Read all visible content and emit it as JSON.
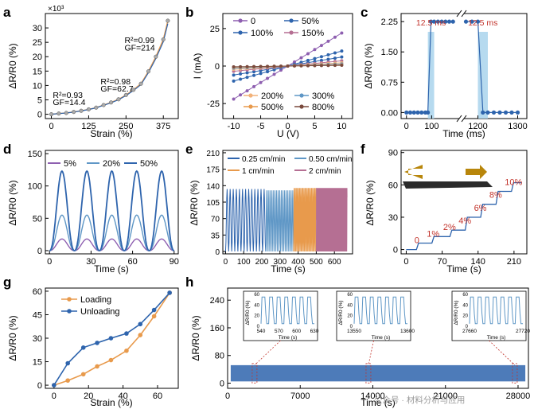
{
  "colors": {
    "blue": "#2e64ad",
    "orange": "#e89a4c",
    "purple": "#8e5fb0",
    "lightblue": "#5f97c6",
    "mauve": "#b56f93",
    "band": "#a9d3ec",
    "red": "#c2332b",
    "darkbrown": "#7a4a3d",
    "peach": "#f2b27a"
  },
  "chart_data": [
    {
      "panel": "a",
      "type": "line",
      "xlabel": "Strain (%)",
      "ylabel": "ΔR/R0 (%)",
      "exponent": "×10³",
      "xticks": [
        0,
        125,
        250,
        375
      ],
      "yticks": [
        0,
        5,
        10,
        15,
        20,
        25,
        30
      ],
      "xlim": [
        -20,
        425
      ],
      "ylim": [
        -1.5,
        35
      ],
      "series": [
        {
          "name": "data",
          "x": [
            0,
            25,
            50,
            75,
            100,
            125,
            150,
            175,
            200,
            225,
            250,
            275,
            300,
            325,
            350,
            375,
            390
          ],
          "y": [
            0,
            0.25,
            0.45,
            0.8,
            1.2,
            1.7,
            2.3,
            3.2,
            4.1,
            5.2,
            6.7,
            8.5,
            10.6,
            14.9,
            20.0,
            26.0,
            32.5
          ]
        }
      ],
      "annotations": [
        {
          "text": "R²=0.93",
          "x": 5,
          "y": 5.7
        },
        {
          "text": "GF=14.4",
          "x": 5,
          "y": 3.2
        },
        {
          "text": "R²=0.98",
          "x": 165,
          "y": 10.4
        },
        {
          "text": "GF=62.7",
          "x": 165,
          "y": 7.9
        },
        {
          "text": "R²=0.99",
          "x": 245,
          "y": 24.8
        },
        {
          "text": "GF=214",
          "x": 245,
          "y": 22.2
        }
      ]
    },
    {
      "panel": "b",
      "type": "line",
      "xlabel": "U (V)",
      "ylabel": "I (mA)",
      "xticks": [
        -10,
        -5,
        0,
        5,
        10
      ],
      "yticks": [
        -25,
        0,
        25
      ],
      "xlim": [
        -12,
        12
      ],
      "ylim": [
        -35,
        35
      ],
      "series": [
        {
          "name": "0",
          "slope": 2.2
        },
        {
          "name": "50%",
          "slope": 1.0
        },
        {
          "name": "100%",
          "slope": 0.6
        },
        {
          "name": "150%",
          "slope": 0.35
        },
        {
          "name": "200%",
          "slope": 0.22
        },
        {
          "name": "300%",
          "slope": 0.14
        },
        {
          "name": "500%",
          "slope": 0.08
        },
        {
          "name": "800%",
          "slope": 0.05
        }
      ]
    },
    {
      "panel": "c",
      "type": "line",
      "xlabel": "Time (ms)",
      "ylabel": "ΔR/R0 (%)",
      "xticks": [
        0,
        100,
        1200,
        1300
      ],
      "yticks": [
        0.0,
        0.75,
        1.5,
        2.25
      ],
      "ylim": [
        -0.15,
        2.45
      ],
      "series": [
        {
          "name": "response",
          "x": [
            0,
            15,
            30,
            45,
            60,
            75,
            85,
            97.5,
            110,
            125,
            140,
            155,
            170,
            185,
            1170,
            1185,
            1200,
            1212.5,
            1225,
            1240,
            1255,
            1270,
            1285,
            1300
          ],
          "y": [
            0,
            0,
            0,
            0,
            0,
            0,
            0,
            2.25,
            2.25,
            2.25,
            2.25,
            2.25,
            2.25,
            2.25,
            2.25,
            2.25,
            2.25,
            0,
            0,
            0,
            0,
            0,
            0,
            0
          ]
        }
      ],
      "annotations": [
        {
          "text": "12.5 ms"
        },
        {
          "text": "12.5 ms"
        }
      ]
    },
    {
      "panel": "d",
      "type": "line",
      "xlabel": "Time (s)",
      "ylabel": "ΔR/R0 (%)",
      "xticks": [
        0,
        30,
        60,
        90
      ],
      "yticks": [
        0,
        50,
        100,
        150
      ],
      "xlim": [
        -3,
        93
      ],
      "ylim": [
        -5,
        155
      ],
      "series": [
        {
          "name": "5%",
          "amplitude": 18,
          "period": 18
        },
        {
          "name": "20%",
          "amplitude": 55,
          "period": 18
        },
        {
          "name": "50%",
          "amplitude": 123,
          "period": 18
        }
      ]
    },
    {
      "panel": "e",
      "type": "line",
      "xlabel": "Time (s)",
      "ylabel": "ΔR/R0 (%)",
      "xticks": [
        0,
        100,
        200,
        300,
        400,
        500,
        600
      ],
      "yticks": [
        0,
        35,
        70,
        105,
        140,
        175,
        210
      ],
      "xlim": [
        -15,
        700
      ],
      "ylim": [
        -5,
        215
      ],
      "series": [
        {
          "name": "0.25 cm/min",
          "t": [
            0,
            222
          ],
          "amplitude": 133,
          "period": 17
        },
        {
          "name": "0.50 cm/min",
          "t": [
            222,
            375
          ],
          "amplitude": 130,
          "period": 9
        },
        {
          "name": "1 cm/min",
          "t": [
            375,
            500
          ],
          "amplitude": 135,
          "period": 6
        },
        {
          "name": "2 cm/min",
          "t": [
            500,
            670
          ],
          "amplitude": 135,
          "period": 3
        }
      ]
    },
    {
      "panel": "f",
      "type": "line",
      "xlabel": "Time (s)",
      "ylabel": "ΔR/R0 (%)",
      "xticks": [
        0,
        70,
        140,
        210
      ],
      "yticks": [
        0,
        30,
        60,
        90
      ],
      "xlim": [
        -10,
        235
      ],
      "ylim": [
        -4,
        92
      ],
      "series": [
        {
          "name": "steps",
          "x": [
            0,
            20,
            24,
            50,
            54,
            85,
            89,
            115,
            119,
            145,
            149,
            175,
            179,
            205,
            209,
            225
          ],
          "y": [
            0,
            0,
            6,
            6,
            12,
            12,
            18,
            18,
            30,
            30,
            42,
            42,
            54,
            54,
            62,
            62
          ]
        }
      ],
      "step_labels": [
        "0",
        "1%",
        "2%",
        "4%",
        "6%",
        "8%",
        "10%"
      ]
    },
    {
      "panel": "g",
      "type": "line",
      "xlabel": "Strain (%)",
      "ylabel": "ΔR/R0 (%)",
      "xticks": [
        0,
        20,
        40,
        60
      ],
      "yticks": [
        0,
        15,
        30,
        45,
        60
      ],
      "xlim": [
        -5,
        72
      ],
      "ylim": [
        -2,
        62
      ],
      "series": [
        {
          "name": "Loading",
          "x": [
            0,
            8,
            17,
            25,
            33,
            42,
            50,
            58,
            67
          ],
          "y": [
            0,
            3,
            7,
            12,
            16,
            22,
            32,
            44,
            59
          ]
        },
        {
          "name": "Unloading",
          "x": [
            0,
            8,
            17,
            25,
            33,
            42,
            50,
            58,
            67
          ],
          "y": [
            0,
            14,
            24,
            27,
            30,
            33,
            39,
            48,
            59
          ]
        }
      ]
    },
    {
      "panel": "h",
      "type": "line",
      "xlabel": "Time (s)",
      "ylabel": "ΔR/R0 (%)",
      "xticks": [
        0,
        7000,
        14000,
        21000,
        28000
      ],
      "yticks": [
        0,
        80,
        160,
        240
      ],
      "xlim": [
        0,
        29000
      ],
      "ylim": [
        -15,
        275
      ],
      "series": [
        {
          "name": "cycling",
          "low": 5,
          "high": 52
        }
      ],
      "insets": [
        {
          "xticks": [
            540,
            570,
            600,
            630
          ],
          "xlabel": "Time (s)",
          "ylabel": "ΔR/R0 (%)",
          "yticks": [
            0,
            20,
            40,
            60
          ]
        },
        {
          "xticks": [
            13550,
            13600
          ],
          "xlabel": "Time (s)",
          "ylabel": "ΔR/R0 (%)",
          "yticks": [
            0,
            20,
            40,
            60
          ]
        },
        {
          "xticks": [
            27660,
            27720
          ],
          "xlabel": "Time (s)",
          "ylabel": "ΔR/R0 (%)",
          "yticks": [
            0,
            20,
            40,
            60
          ]
        }
      ]
    }
  ],
  "panel_labels": [
    "a",
    "b",
    "c",
    "d",
    "e",
    "f",
    "g",
    "h"
  ],
  "watermark": "公众号 · 材料分析与应用"
}
